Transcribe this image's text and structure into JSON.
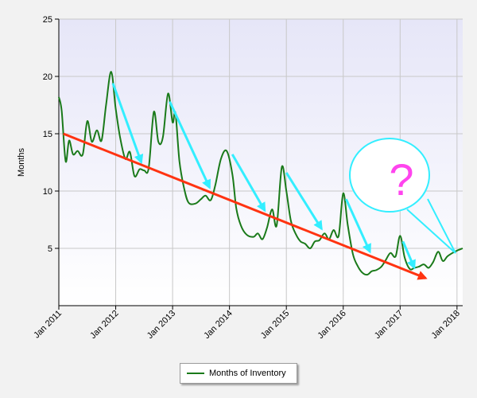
{
  "chart_data": {
    "type": "line",
    "title": "",
    "xlabel": "",
    "ylabel": "Months",
    "ylim": [
      0,
      25
    ],
    "yticks": [
      5,
      10,
      15,
      20,
      25
    ],
    "xlim": [
      2011.0,
      2018.1
    ],
    "xticks": [
      {
        "value": 2011,
        "label": "Jan 2011"
      },
      {
        "value": 2012,
        "label": "Jan 2012"
      },
      {
        "value": 2013,
        "label": "Jan 2013"
      },
      {
        "value": 2014,
        "label": "Jan 2014"
      },
      {
        "value": 2015,
        "label": "Jan 2015"
      },
      {
        "value": 2016,
        "label": "Jan 2016"
      },
      {
        "value": 2017,
        "label": "Jan 2017"
      },
      {
        "value": 2018,
        "label": "Jan 2018"
      }
    ],
    "grid": true,
    "legend_placement": "bottom-center",
    "colors": {
      "series": "#1a7a1a",
      "trend_arrow": "#ff3311",
      "decline_arrows": "#33eeff",
      "question_mark": "#ff44ee",
      "plot_background_top": "#e6e6f8",
      "plot_background_bottom": "#ffffff"
    },
    "series": [
      {
        "name": "Months of Inventory",
        "points": [
          [
            2011.0,
            18.2
          ],
          [
            2011.05,
            17.0
          ],
          [
            2011.12,
            12.6
          ],
          [
            2011.18,
            14.4
          ],
          [
            2011.25,
            13.2
          ],
          [
            2011.33,
            13.5
          ],
          [
            2011.42,
            13.2
          ],
          [
            2011.5,
            16.1
          ],
          [
            2011.58,
            14.3
          ],
          [
            2011.67,
            15.3
          ],
          [
            2011.75,
            14.4
          ],
          [
            2011.83,
            17.5
          ],
          [
            2011.92,
            20.4
          ],
          [
            2012.0,
            17.2
          ],
          [
            2012.08,
            14.6
          ],
          [
            2012.17,
            12.8
          ],
          [
            2012.25,
            13.4
          ],
          [
            2012.33,
            11.3
          ],
          [
            2012.42,
            11.9
          ],
          [
            2012.5,
            11.8
          ],
          [
            2012.58,
            12.0
          ],
          [
            2012.67,
            16.9
          ],
          [
            2012.75,
            14.3
          ],
          [
            2012.83,
            14.7
          ],
          [
            2012.92,
            18.5
          ],
          [
            2013.0,
            16.0
          ],
          [
            2013.05,
            16.8
          ],
          [
            2013.12,
            12.6
          ],
          [
            2013.2,
            10.3
          ],
          [
            2013.28,
            9.0
          ],
          [
            2013.4,
            8.9
          ],
          [
            2013.5,
            9.3
          ],
          [
            2013.58,
            9.6
          ],
          [
            2013.67,
            9.2
          ],
          [
            2013.75,
            10.5
          ],
          [
            2013.85,
            12.8
          ],
          [
            2013.95,
            13.5
          ],
          [
            2014.05,
            11.5
          ],
          [
            2014.12,
            8.5
          ],
          [
            2014.2,
            7.0
          ],
          [
            2014.3,
            6.2
          ],
          [
            2014.42,
            6.0
          ],
          [
            2014.5,
            6.3
          ],
          [
            2014.58,
            5.8
          ],
          [
            2014.66,
            6.8
          ],
          [
            2014.75,
            8.4
          ],
          [
            2014.83,
            7.0
          ],
          [
            2014.92,
            12.1
          ],
          [
            2015.0,
            10.0
          ],
          [
            2015.08,
            7.4
          ],
          [
            2015.17,
            6.2
          ],
          [
            2015.25,
            5.6
          ],
          [
            2015.33,
            5.4
          ],
          [
            2015.42,
            5.0
          ],
          [
            2015.5,
            5.6
          ],
          [
            2015.58,
            5.7
          ],
          [
            2015.67,
            6.3
          ],
          [
            2015.75,
            5.8
          ],
          [
            2015.83,
            6.6
          ],
          [
            2015.92,
            6.1
          ],
          [
            2016.0,
            9.8
          ],
          [
            2016.08,
            7.0
          ],
          [
            2016.17,
            4.5
          ],
          [
            2016.25,
            3.5
          ],
          [
            2016.33,
            2.9
          ],
          [
            2016.42,
            2.7
          ],
          [
            2016.5,
            3.0
          ],
          [
            2016.58,
            3.1
          ],
          [
            2016.67,
            3.4
          ],
          [
            2016.75,
            4.0
          ],
          [
            2016.83,
            4.6
          ],
          [
            2016.92,
            4.3
          ],
          [
            2017.0,
            6.1
          ],
          [
            2017.08,
            4.2
          ],
          [
            2017.17,
            3.2
          ],
          [
            2017.25,
            3.3
          ],
          [
            2017.33,
            3.4
          ],
          [
            2017.42,
            3.6
          ],
          [
            2017.5,
            3.3
          ],
          [
            2017.58,
            3.8
          ],
          [
            2017.67,
            4.7
          ],
          [
            2017.75,
            3.9
          ],
          [
            2017.83,
            4.3
          ],
          [
            2017.92,
            4.6
          ],
          [
            2018.0,
            4.8
          ],
          [
            2018.1,
            5.0
          ]
        ]
      }
    ]
  },
  "annotations": {
    "trend_arrow": {
      "from": [
        2011.08,
        15.0
      ],
      "to": [
        2017.45,
        2.4
      ]
    },
    "decline_arrows": [
      {
        "from": [
          2011.95,
          19.4
        ],
        "to": [
          2012.45,
          12.5
        ]
      },
      {
        "from": [
          2012.95,
          17.8
        ],
        "to": [
          2013.65,
          10.3
        ]
      },
      {
        "from": [
          2014.05,
          13.2
        ],
        "to": [
          2014.62,
          8.3
        ]
      },
      {
        "from": [
          2015.0,
          11.6
        ],
        "to": [
          2015.62,
          6.7
        ]
      },
      {
        "from": [
          2016.05,
          9.3
        ],
        "to": [
          2016.47,
          4.7
        ]
      },
      {
        "from": [
          2017.05,
          5.6
        ],
        "to": [
          2017.25,
          3.3
        ]
      }
    ],
    "speech_bubble_text": "?"
  }
}
